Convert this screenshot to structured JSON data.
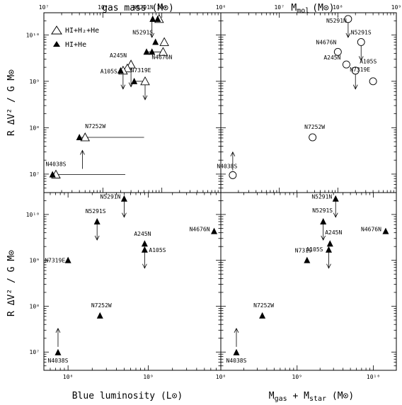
{
  "figure": {
    "ylabel_top": "R ΔV² / G M⊙",
    "ylabel_bottom": "R ΔV² / G M⊙",
    "xlabel_top_left": "gas mass (M⊙)",
    "xlabel_top_right": "M",
    "xlabel_top_right_sub": "mol",
    "xlabel_top_right_unit": "(M⊙)",
    "xlabel_bottom_left": "Blue luminosity (L⊙)",
    "xlabel_bottom_right": "M",
    "xlabel_bottom_right_sub1": "gas",
    "xlabel_bottom_right_mid": " + M",
    "xlabel_bottom_right_sub2": "star",
    "xlabel_bottom_right_unit": " (M⊙)",
    "legend": {
      "open": "HI+H₂+He",
      "filled": "HI+He",
      "placement": "top-left of panel A"
    }
  },
  "chart_data": [
    {
      "panel": "top-left",
      "type": "scatter",
      "xscale": "log",
      "yscale": "log",
      "xlim": [
        10000000.0,
        10000000000.0
      ],
      "ylim": [
        4000000.0,
        30000000000.0
      ],
      "x_ticks": [
        "10⁷",
        "10⁸",
        "10⁹"
      ],
      "y_ticks": [
        "10⁷",
        "10⁸",
        "10⁹",
        "10¹⁰"
      ],
      "xlabel": "gas mass (M⊙)",
      "ylabel": "R ΔV² / G M⊙",
      "series": [
        {
          "name": "HI+H₂+He",
          "marker": "open-triangle",
          "points": [
            {
              "label": "N5291N",
              "x": 900000000.0,
              "y": 22000000000.0
            },
            {
              "label": "N5291S",
              "x": 1100000000.0,
              "y": 7000000000.0
            },
            {
              "label": "N4676N",
              "x": 1050000000.0,
              "y": 4300000000.0
            },
            {
              "label": "A245N",
              "x": 300000000.0,
              "y": 2300000000.0
            },
            {
              "label": "",
              "x": 260000000.0,
              "y": 1900000000.0
            },
            {
              "label": "A105S",
              "x": 220000000.0,
              "y": 1700000000.0
            },
            {
              "label": "N7319E",
              "x": 520000000.0,
              "y": 1000000000.0
            },
            {
              "label": "N7252W",
              "x": 50000000.0,
              "y": 62000000.0
            },
            {
              "label": "N4038S",
              "x": 16000000.0,
              "y": 9800000.0
            }
          ]
        },
        {
          "name": "HI+He",
          "marker": "filled-triangle",
          "points": [
            {
              "label": "",
              "x": 700000000.0,
              "y": 22000000000.0
            },
            {
              "label": "",
              "x": 850000000.0,
              "y": 22000000000.0
            },
            {
              "label": "",
              "x": 780000000.0,
              "y": 7000000000.0
            },
            {
              "label": "",
              "x": 680000000.0,
              "y": 4300000000.0
            },
            {
              "label": "",
              "x": 550000000.0,
              "y": 4300000000.0
            },
            {
              "label": "",
              "x": 200000000.0,
              "y": 1700000000.0
            },
            {
              "label": "",
              "x": 340000000.0,
              "y": 1000000000.0
            },
            {
              "label": "",
              "x": 40000000.0,
              "y": 62000000.0
            },
            {
              "label": "",
              "x": 14000000.0,
              "y": 9800000.0
            }
          ]
        }
      ],
      "ranges": [
        {
          "from": 14000000.0,
          "to": 240000000.0,
          "y": 9800000.0
        },
        {
          "from": 40000000.0,
          "to": 500000000.0,
          "y": 62000000.0
        },
        {
          "from": 340000000.0,
          "to": 520000000.0,
          "y": 1000000000.0
        },
        {
          "from": 550000000.0,
          "to": 1050000000.0,
          "y": 4300000000.0
        }
      ],
      "limits": [
        {
          "x": 45000000.0,
          "y": 13000000.0,
          "dir": "up"
        },
        {
          "x": 680000000.0,
          "y": 22000000000.0,
          "dir": "down"
        },
        {
          "x": 300000000.0,
          "y": 1900000000.0,
          "dir": "down"
        },
        {
          "x": 220000000.0,
          "y": 1700000000.0,
          "dir": "down"
        },
        {
          "x": 520000000.0,
          "y": 1000000000.0,
          "dir": "down"
        }
      ]
    },
    {
      "panel": "top-right",
      "type": "scatter",
      "xscale": "log",
      "yscale": "log",
      "xlim": [
        1000000.0,
        1000000000.0
      ],
      "ylim": [
        4000000.0,
        30000000000.0
      ],
      "x_ticks": [
        "10⁶",
        "10⁷",
        "10⁸",
        "10⁹"
      ],
      "xlabel": "M mol (M⊙)",
      "series": [
        {
          "name": "M mol",
          "marker": "open-circle",
          "points": [
            {
              "label": "N5291N",
              "x": 150000000.0,
              "y": 22000000000.0
            },
            {
              "label": "N5291S",
              "x": 250000000.0,
              "y": 7000000000.0
            },
            {
              "label": "N4676N",
              "x": 100000000.0,
              "y": 4300000000.0
            },
            {
              "label": "A245N",
              "x": 140000000.0,
              "y": 2300000000.0
            },
            {
              "label": "A105S",
              "x": 200000000.0,
              "y": 1700000000.0
            },
            {
              "label": "N7319E",
              "x": 400000000.0,
              "y": 1000000000.0
            },
            {
              "label": "N7252W",
              "x": 37000000.0,
              "y": 62000000.0
            },
            {
              "label": "N4038S",
              "x": 1600000.0,
              "y": 9500000.0
            }
          ]
        }
      ],
      "limits": [
        {
          "x": 1600000.0,
          "y": 12000000.0,
          "dir": "up"
        },
        {
          "x": 150000000.0,
          "y": 22000000000.0,
          "dir": "down"
        },
        {
          "x": 250000000.0,
          "y": 7000000000.0,
          "dir": "down"
        },
        {
          "x": 200000000.0,
          "y": 1700000000.0,
          "dir": "down"
        }
      ]
    },
    {
      "panel": "bottom-left",
      "type": "scatter",
      "xscale": "log",
      "yscale": "log",
      "xlim": [
        50000000.0,
        8000000000.0
      ],
      "ylim": [
        4000000.0,
        30000000000.0
      ],
      "x_ticks": [
        "10⁸",
        "10⁹"
      ],
      "y_ticks": [
        "10⁷",
        "10⁸",
        "10⁹",
        "10¹⁰"
      ],
      "xlabel": "Blue luminosity (L⊙)",
      "ylabel": "R ΔV² / G M⊙",
      "series": [
        {
          "name": "HI+He",
          "marker": "filled-triangle",
          "points": [
            {
              "label": "N5291N",
              "x": 500000000.0,
              "y": 22000000000.0
            },
            {
              "label": "N5291S",
              "x": 230000000.0,
              "y": 7000000000.0
            },
            {
              "label": "N4676N",
              "x": 6600000000.0,
              "y": 4300000000.0
            },
            {
              "label": "A245N",
              "x": 900000000.0,
              "y": 2300000000.0
            },
            {
              "label": "A105S",
              "x": 900000000.0,
              "y": 1700000000.0
            },
            {
              "label": "N7319E",
              "x": 100000000.0,
              "y": 1000000000.0
            },
            {
              "label": "N7252W",
              "x": 250000000.0,
              "y": 62000000.0
            },
            {
              "label": "N4038S",
              "x": 75000000.0,
              "y": 9800000.0
            }
          ]
        }
      ],
      "limits": [
        {
          "x": 75000000.0,
          "y": 13000000.0,
          "dir": "up"
        },
        {
          "x": 500000000.0,
          "y": 22000000000.0,
          "dir": "down"
        },
        {
          "x": 230000000.0,
          "y": 7000000000.0,
          "dir": "down"
        },
        {
          "x": 900000000.0,
          "y": 1700000000.0,
          "dir": "down"
        }
      ]
    },
    {
      "panel": "bottom-right",
      "type": "scatter",
      "xscale": "log",
      "yscale": "log",
      "xlim": [
        100000000.0,
        20000000000.0
      ],
      "ylim": [
        4000000.0,
        30000000000.0
      ],
      "x_ticks": [
        "10⁸",
        "10⁹",
        "10¹⁰"
      ],
      "xlabel": "M gas + M star (M⊙)",
      "series": [
        {
          "name": "HI+He",
          "marker": "filled-triangle",
          "points": [
            {
              "label": "N5291N",
              "x": 3200000000.0,
              "y": 22000000000.0
            },
            {
              "label": "N5291S",
              "x": 2200000000.0,
              "y": 7000000000.0
            },
            {
              "label": "N4676N",
              "x": 14500000000.0,
              "y": 4300000000.0
            },
            {
              "label": "A245N",
              "x": 2700000000.0,
              "y": 2300000000.0
            },
            {
              "label": "A105S",
              "x": 2600000000.0,
              "y": 1700000000.0
            },
            {
              "label": "N7319",
              "x": 1350000000.0,
              "y": 1000000000.0
            },
            {
              "label": "N7252W",
              "x": 350000000.0,
              "y": 62000000.0
            },
            {
              "label": "N4038S",
              "x": 160000000.0,
              "y": 9800000.0
            }
          ]
        }
      ],
      "limits": [
        {
          "x": 160000000.0,
          "y": 13000000.0,
          "dir": "up"
        },
        {
          "x": 3200000000.0,
          "y": 22000000000.0,
          "dir": "down"
        },
        {
          "x": 2200000000.0,
          "y": 7000000000.0,
          "dir": "down"
        },
        {
          "x": 2600000000.0,
          "y": 1700000000.0,
          "dir": "down"
        }
      ]
    }
  ]
}
